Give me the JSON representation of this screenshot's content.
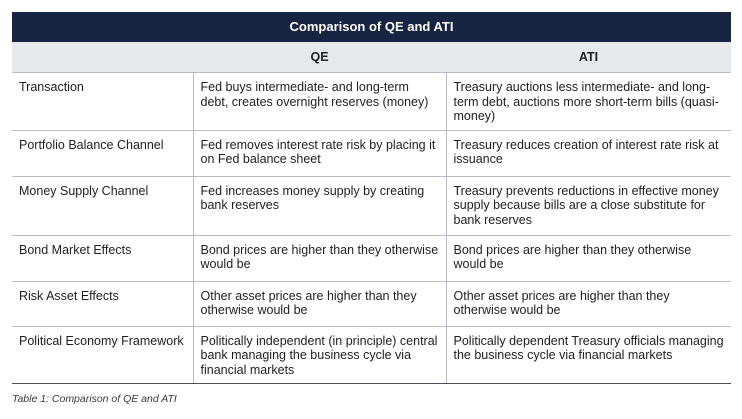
{
  "table": {
    "title": "Comparison of QE and ATI",
    "columns": [
      "",
      "QE",
      "ATI"
    ],
    "rows": [
      {
        "label": "Transaction",
        "qe": "Fed buys intermediate- and long-term debt, creates overnight reserves (money)",
        "ati": "Treasury auctions less intermediate- and long-term debt, auctions more short-term bills (quasi-money)"
      },
      {
        "label": "Portfolio Balance Channel",
        "qe": "Fed removes interest rate risk by placing it on Fed balance sheet",
        "ati": "Treasury reduces creation of interest rate risk at issuance"
      },
      {
        "label": "Money Supply Channel",
        "qe": "Fed increases money supply by creating bank reserves",
        "ati": "Treasury prevents reductions in effective money supply because bills are a close substitute for bank reserves"
      },
      {
        "label": "Bond Market Effects",
        "qe": "Bond prices are higher than they otherwise would be",
        "ati": "Bond prices are higher than they otherwise would be"
      },
      {
        "label": "Risk Asset Effects",
        "qe": "Other asset prices are higher than they otherwise would be",
        "ati": "Other asset prices are higher than they otherwise would be"
      },
      {
        "label": "Political Economy Framework",
        "qe": "Politically independent (in principle) central bank managing the business cycle via financial markets",
        "ati": "Politically dependent Treasury officials managing the business cycle via financial markets"
      }
    ]
  },
  "caption": "Table 1: Comparison of QE and ATI",
  "colors": {
    "title_bg": "#172542",
    "header_bg": "#e7e8ec",
    "rule": "#b9bcc4"
  }
}
